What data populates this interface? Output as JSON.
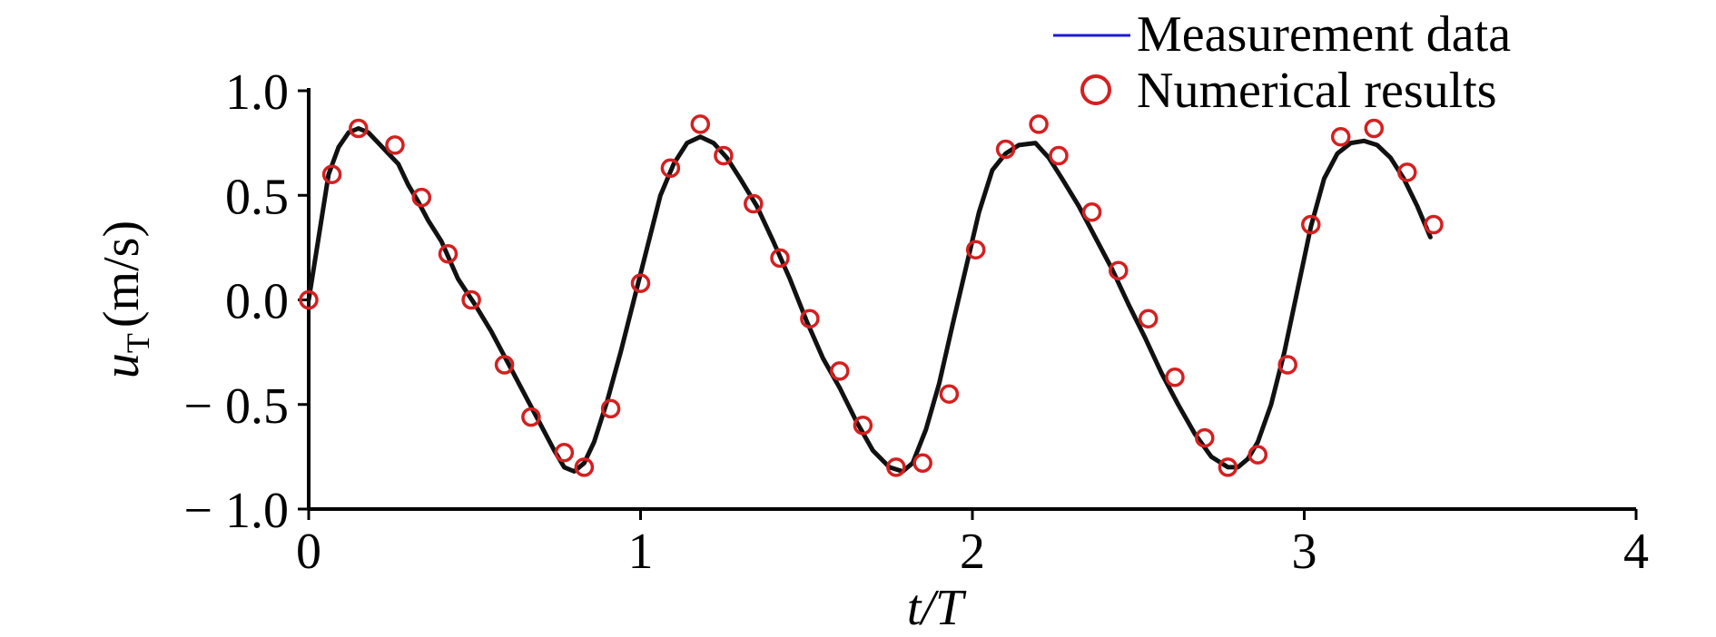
{
  "chart_data": {
    "type": "line",
    "title": "",
    "xlabel": "t/T",
    "ylabel": {
      "symbol": "u",
      "subscript": "T",
      "unit": "(m/s)"
    },
    "xlim": [
      0,
      4
    ],
    "ylim": [
      -1.0,
      1.0
    ],
    "x_ticks": [
      0,
      1,
      2,
      3,
      4
    ],
    "x_tick_labels": [
      "0",
      "1",
      "2",
      "3",
      "4"
    ],
    "y_ticks": [
      1.0,
      0.5,
      0.0,
      -0.5,
      -1.0
    ],
    "y_tick_labels": [
      "1.0",
      "0.5",
      "0.0",
      "− 0.5",
      "− 1.0"
    ],
    "grid": false,
    "legend_position": "top-right",
    "legend": [
      {
        "label": "Measurement data",
        "marker": "line",
        "color": "#1a1ad6"
      },
      {
        "label": "Numerical results",
        "marker": "circle",
        "color": "#d42020"
      }
    ],
    "series": [
      {
        "name": "Measurement data",
        "style": "line",
        "color": "#111111",
        "x": [
          0.0,
          0.03,
          0.06,
          0.09,
          0.12,
          0.15,
          0.18,
          0.21,
          0.24,
          0.27,
          0.3,
          0.33,
          0.36,
          0.4,
          0.45,
          0.5,
          0.55,
          0.6,
          0.65,
          0.7,
          0.74,
          0.77,
          0.8,
          0.83,
          0.86,
          0.9,
          0.94,
          0.98,
          1.02,
          1.06,
          1.1,
          1.14,
          1.18,
          1.22,
          1.26,
          1.3,
          1.35,
          1.4,
          1.45,
          1.5,
          1.55,
          1.6,
          1.65,
          1.7,
          1.75,
          1.79,
          1.82,
          1.86,
          1.9,
          1.94,
          1.98,
          2.02,
          2.06,
          2.1,
          2.14,
          2.19,
          2.23,
          2.27,
          2.32,
          2.37,
          2.42,
          2.47,
          2.52,
          2.57,
          2.62,
          2.67,
          2.72,
          2.77,
          2.8,
          2.83,
          2.86,
          2.9,
          2.94,
          2.98,
          3.02,
          3.06,
          3.1,
          3.14,
          3.18,
          3.22,
          3.26,
          3.3,
          3.34,
          3.38
        ],
        "y": [
          0.0,
          0.3,
          0.6,
          0.73,
          0.8,
          0.82,
          0.8,
          0.75,
          0.7,
          0.65,
          0.55,
          0.47,
          0.38,
          0.28,
          0.1,
          -0.02,
          -0.15,
          -0.3,
          -0.45,
          -0.6,
          -0.72,
          -0.8,
          -0.82,
          -0.78,
          -0.68,
          -0.48,
          -0.25,
          0.0,
          0.25,
          0.5,
          0.65,
          0.75,
          0.78,
          0.75,
          0.68,
          0.58,
          0.45,
          0.28,
          0.1,
          -0.1,
          -0.28,
          -0.42,
          -0.58,
          -0.72,
          -0.8,
          -0.82,
          -0.78,
          -0.62,
          -0.4,
          -0.12,
          0.15,
          0.42,
          0.62,
          0.7,
          0.74,
          0.75,
          0.68,
          0.58,
          0.45,
          0.3,
          0.15,
          -0.02,
          -0.18,
          -0.35,
          -0.5,
          -0.64,
          -0.75,
          -0.8,
          -0.8,
          -0.76,
          -0.68,
          -0.5,
          -0.25,
          0.05,
          0.35,
          0.58,
          0.7,
          0.75,
          0.76,
          0.74,
          0.68,
          0.58,
          0.45,
          0.3
        ]
      },
      {
        "name": "Numerical results",
        "style": "circle",
        "color": "#d42020",
        "x": [
          0.0,
          0.07,
          0.15,
          0.26,
          0.34,
          0.42,
          0.49,
          0.59,
          0.67,
          0.77,
          0.83,
          0.91,
          1.0,
          1.09,
          1.18,
          1.25,
          1.34,
          1.42,
          1.51,
          1.6,
          1.67,
          1.77,
          1.85,
          1.93,
          2.01,
          2.1,
          2.2,
          2.26,
          2.36,
          2.44,
          2.53,
          2.61,
          2.7,
          2.77,
          2.86,
          2.95,
          3.02,
          3.11,
          3.21,
          3.31,
          3.39
        ],
        "y": [
          0.0,
          0.6,
          0.82,
          0.74,
          0.49,
          0.22,
          0.0,
          -0.31,
          -0.56,
          -0.73,
          -0.8,
          -0.52,
          0.08,
          0.63,
          0.84,
          0.69,
          0.46,
          0.2,
          -0.09,
          -0.34,
          -0.6,
          -0.8,
          -0.78,
          -0.45,
          0.24,
          0.72,
          0.84,
          0.69,
          0.42,
          0.14,
          -0.09,
          -0.37,
          -0.66,
          -0.8,
          -0.74,
          -0.31,
          0.36,
          0.78,
          0.82,
          0.61,
          0.36
        ]
      }
    ]
  }
}
